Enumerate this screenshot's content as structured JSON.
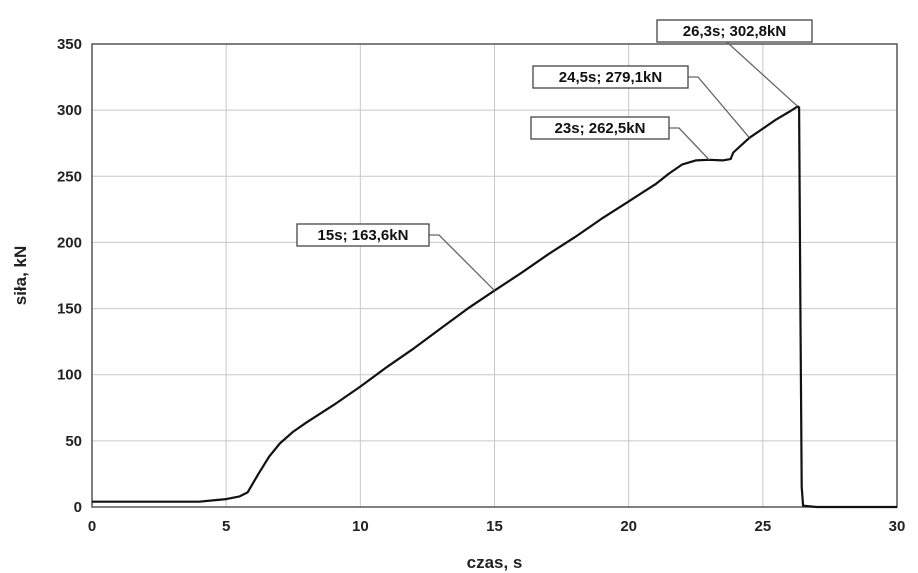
{
  "chart_data": {
    "type": "line",
    "title": "",
    "xlabel": "czas, s",
    "ylabel": "siła, kN",
    "xlim": [
      0,
      30
    ],
    "ylim": [
      0,
      350
    ],
    "xticks": [
      0,
      5,
      10,
      15,
      20,
      25,
      30
    ],
    "yticks": [
      0,
      50,
      100,
      150,
      200,
      250,
      300,
      350
    ],
    "grid": true,
    "legend": "none",
    "line_color": "#111111",
    "series": [
      {
        "x": [
          0,
          1,
          2,
          3,
          4,
          4.5,
          5,
          5.5,
          5.8,
          6.2,
          6.6,
          7,
          7.5,
          8,
          9,
          10,
          11,
          12,
          13,
          14,
          15,
          16,
          17,
          18,
          19,
          20,
          21,
          21.5,
          22,
          22.5,
          23,
          23.5,
          23.8,
          23.9,
          24.5,
          25,
          25.5,
          26,
          26.3,
          26.35,
          26.4,
          26.45,
          26.5,
          27,
          28,
          29,
          30
        ],
        "y": [
          4,
          4,
          4,
          4,
          4,
          5,
          6,
          8,
          11,
          25,
          38,
          48,
          57,
          64,
          77,
          91,
          106,
          120,
          135,
          150,
          163.6,
          177,
          191,
          204,
          218,
          231,
          244,
          252,
          259,
          262,
          262.5,
          262,
          263,
          268,
          279.1,
          286,
          293,
          299,
          302.8,
          302,
          150,
          15,
          1,
          0,
          0,
          0,
          0
        ]
      }
    ],
    "annotations": [
      {
        "text": "15s; 163,6kN",
        "x": 15,
        "y": 163.6
      },
      {
        "text": "23s; 262,5kN",
        "x": 23,
        "y": 262.5
      },
      {
        "text": "24,5s; 279,1kN",
        "x": 24.5,
        "y": 279.1
      },
      {
        "text": "26,3s; 302,8kN",
        "x": 26.3,
        "y": 302.8
      }
    ]
  }
}
